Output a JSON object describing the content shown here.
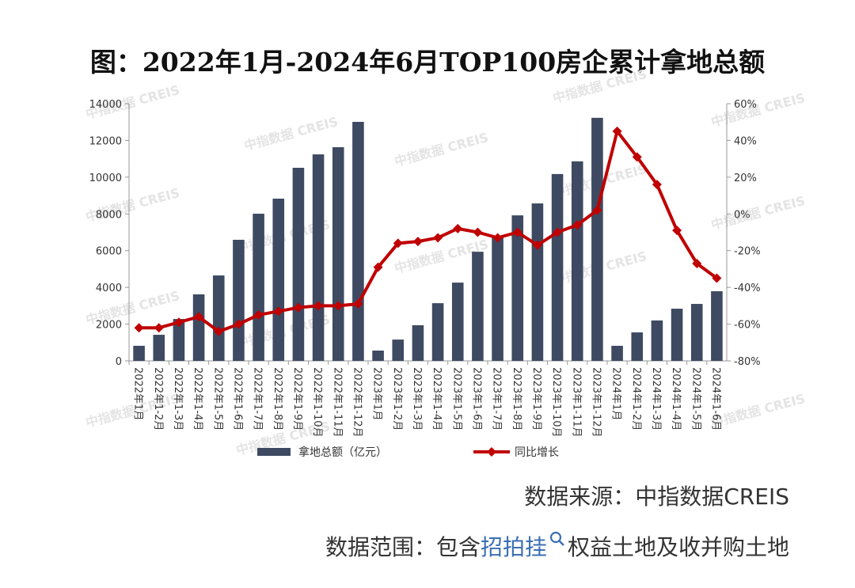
{
  "chart_data": {
    "type": "bar-line",
    "title": "图：2022年1月-2024年6月TOP100房企累计拿地总额",
    "categories": [
      "2022年1月",
      "2022年1-2月",
      "2022年1-3月",
      "2022年1-4月",
      "2022年1-5月",
      "2022年1-6月",
      "2022年1-7月",
      "2022年1-8月",
      "2022年1-9月",
      "2022年1-10月",
      "2022年1-11月",
      "2022年1-12月",
      "2023年1月",
      "2023年1-2月",
      "2023年1-3月",
      "2023年1-4月",
      "2023年1-5月",
      "2023年1-6月",
      "2023年1-7月",
      "2023年1-8月",
      "2023年1-9月",
      "2023年1-10月",
      "2023年1-11月",
      "2023年1-12月",
      "2024年1月",
      "2024年1-2月",
      "2024年1-3月",
      "2024年1-4月",
      "2024年1-5月",
      "2024年1-6月"
    ],
    "series": [
      {
        "name": "拿地总额（亿元）",
        "color": "#3e4a61",
        "type": "bar",
        "axis": "y",
        "values": [
          820,
          1420,
          2280,
          3620,
          4650,
          6590,
          8010,
          8830,
          10510,
          11240,
          11630,
          13010,
          560,
          1160,
          1940,
          3140,
          4260,
          5940,
          6700,
          7920,
          8570,
          10170,
          10860,
          13230,
          820,
          1550,
          2200,
          2840,
          3100,
          3790
        ]
      },
      {
        "name": "同比增长",
        "color": "#c00000",
        "type": "line",
        "axis": "y2",
        "values": [
          -62,
          -62,
          -59,
          -56,
          -64,
          -60,
          -55,
          -53,
          -51,
          -50,
          -50,
          -49,
          -29,
          -16,
          -15,
          -13,
          -8,
          -10,
          -13,
          -10,
          -17,
          -10,
          -6,
          2,
          45,
          31,
          16,
          -9,
          -27,
          -35
        ]
      }
    ],
    "ylim": [
      0,
      14000
    ],
    "yticks": [
      0,
      2000,
      4000,
      6000,
      8000,
      10000,
      12000,
      14000
    ],
    "y2lim": [
      -80,
      60
    ],
    "y2ticks": [
      {
        "value": -80,
        "label": "-80%"
      },
      {
        "value": -60,
        "label": "-60%"
      },
      {
        "value": -40,
        "label": "-40%"
      },
      {
        "value": -20,
        "label": "-20%"
      },
      {
        "value": 0,
        "label": "0%"
      },
      {
        "value": 20,
        "label": "20%"
      },
      {
        "value": 40,
        "label": "40%"
      },
      {
        "value": 60,
        "label": "60%"
      }
    ],
    "legend": "bottom",
    "watermark": "中指数据 CREIS"
  },
  "footer": {
    "source": "数据来源：中指数据CREIS",
    "scope_prefix": "数据范围：包含",
    "scope_link": "招拍挂",
    "scope_suffix": "权益土地及收并购土地"
  }
}
